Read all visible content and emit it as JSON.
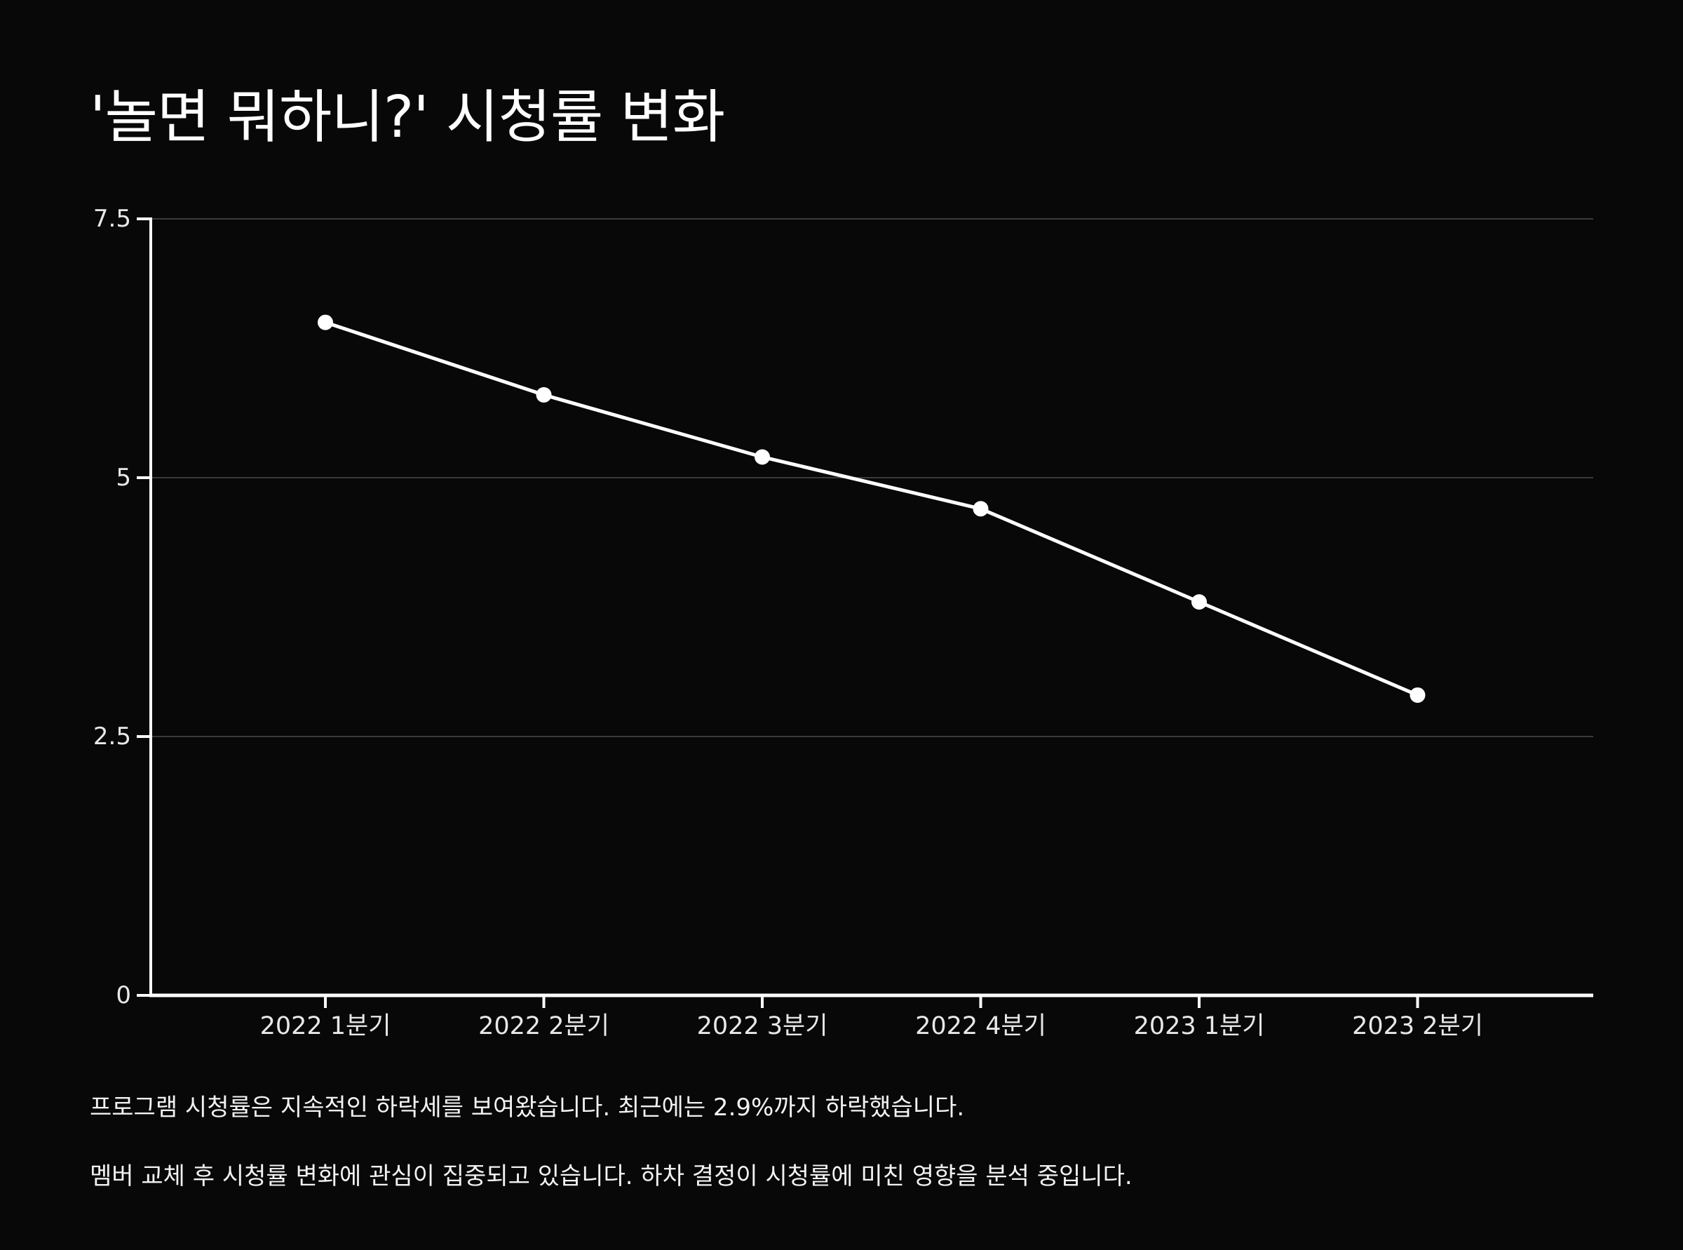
{
  "chart_data": {
    "type": "line",
    "title": "'놀면 뭐하니?' 시청률 변화",
    "categories": [
      "2022 1분기",
      "2022 2분기",
      "2022 3분기",
      "2022 4분기",
      "2023 1분기",
      "2023 2분기"
    ],
    "series": [
      {
        "values": [
          6.5,
          5.8,
          5.2,
          4.7,
          3.8,
          2.9
        ]
      }
    ],
    "xlabel": "",
    "ylabel": "",
    "ylim": [
      0,
      7.5
    ],
    "yticks": [
      "0",
      "2.5",
      "5",
      "7.5"
    ],
    "grid": true,
    "legend": "none",
    "colors": {
      "background": "#080808",
      "line": "#ffffff",
      "grid": "#3a3a3a",
      "axis": "#ffffff"
    }
  },
  "notes": [
    "프로그램 시청률은 지속적인 하락세를 보여왔습니다. 최근에는 2.9%까지 하락했습니다.",
    "멤버 교체 후 시청률 변화에 관심이 집중되고 있습니다. 하차 결정이 시청률에 미친 영향을 분석 중입니다."
  ]
}
